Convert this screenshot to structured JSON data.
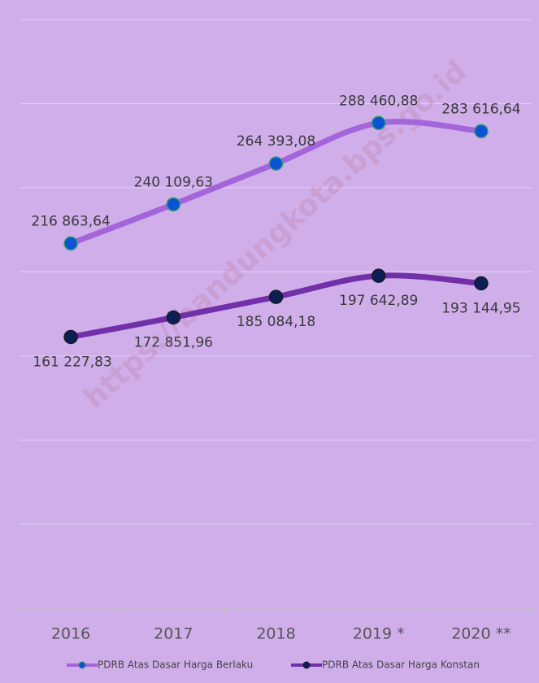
{
  "chart_data": {
    "type": "line",
    "categories": [
      "2016",
      "2017",
      "2018",
      "2019 *",
      "2020 **"
    ],
    "series": [
      {
        "name": "PDRB Atas Dasar Harga Berlaku",
        "color": "#a565da",
        "marker_color": "#0a52d6",
        "values": [
          216863.64,
          240109.63,
          264393.08,
          288460.88,
          283616.64
        ],
        "value_labels": [
          "216 863,64",
          "240 109,63",
          "264 393,08",
          "288 460,88",
          "283 616,64"
        ]
      },
      {
        "name": "PDRB Atas Dasar Harga Konstan",
        "color": "#7130a8",
        "marker_color": "#0b1f52",
        "values": [
          161227.83,
          172851.96,
          185084.18,
          197642.89,
          193144.95
        ],
        "value_labels": [
          "161 227,83",
          "172 851,96",
          "185 084,18",
          "197 642,89",
          "193 144,95"
        ]
      }
    ],
    "ylim": [
      0,
      350000
    ],
    "yticks": [
      0,
      50000,
      100000,
      150000,
      200000,
      250000,
      300000,
      350000
    ],
    "grid": true,
    "legend": "bottom",
    "annotation": "https://bandungkota.bps.go.id"
  }
}
